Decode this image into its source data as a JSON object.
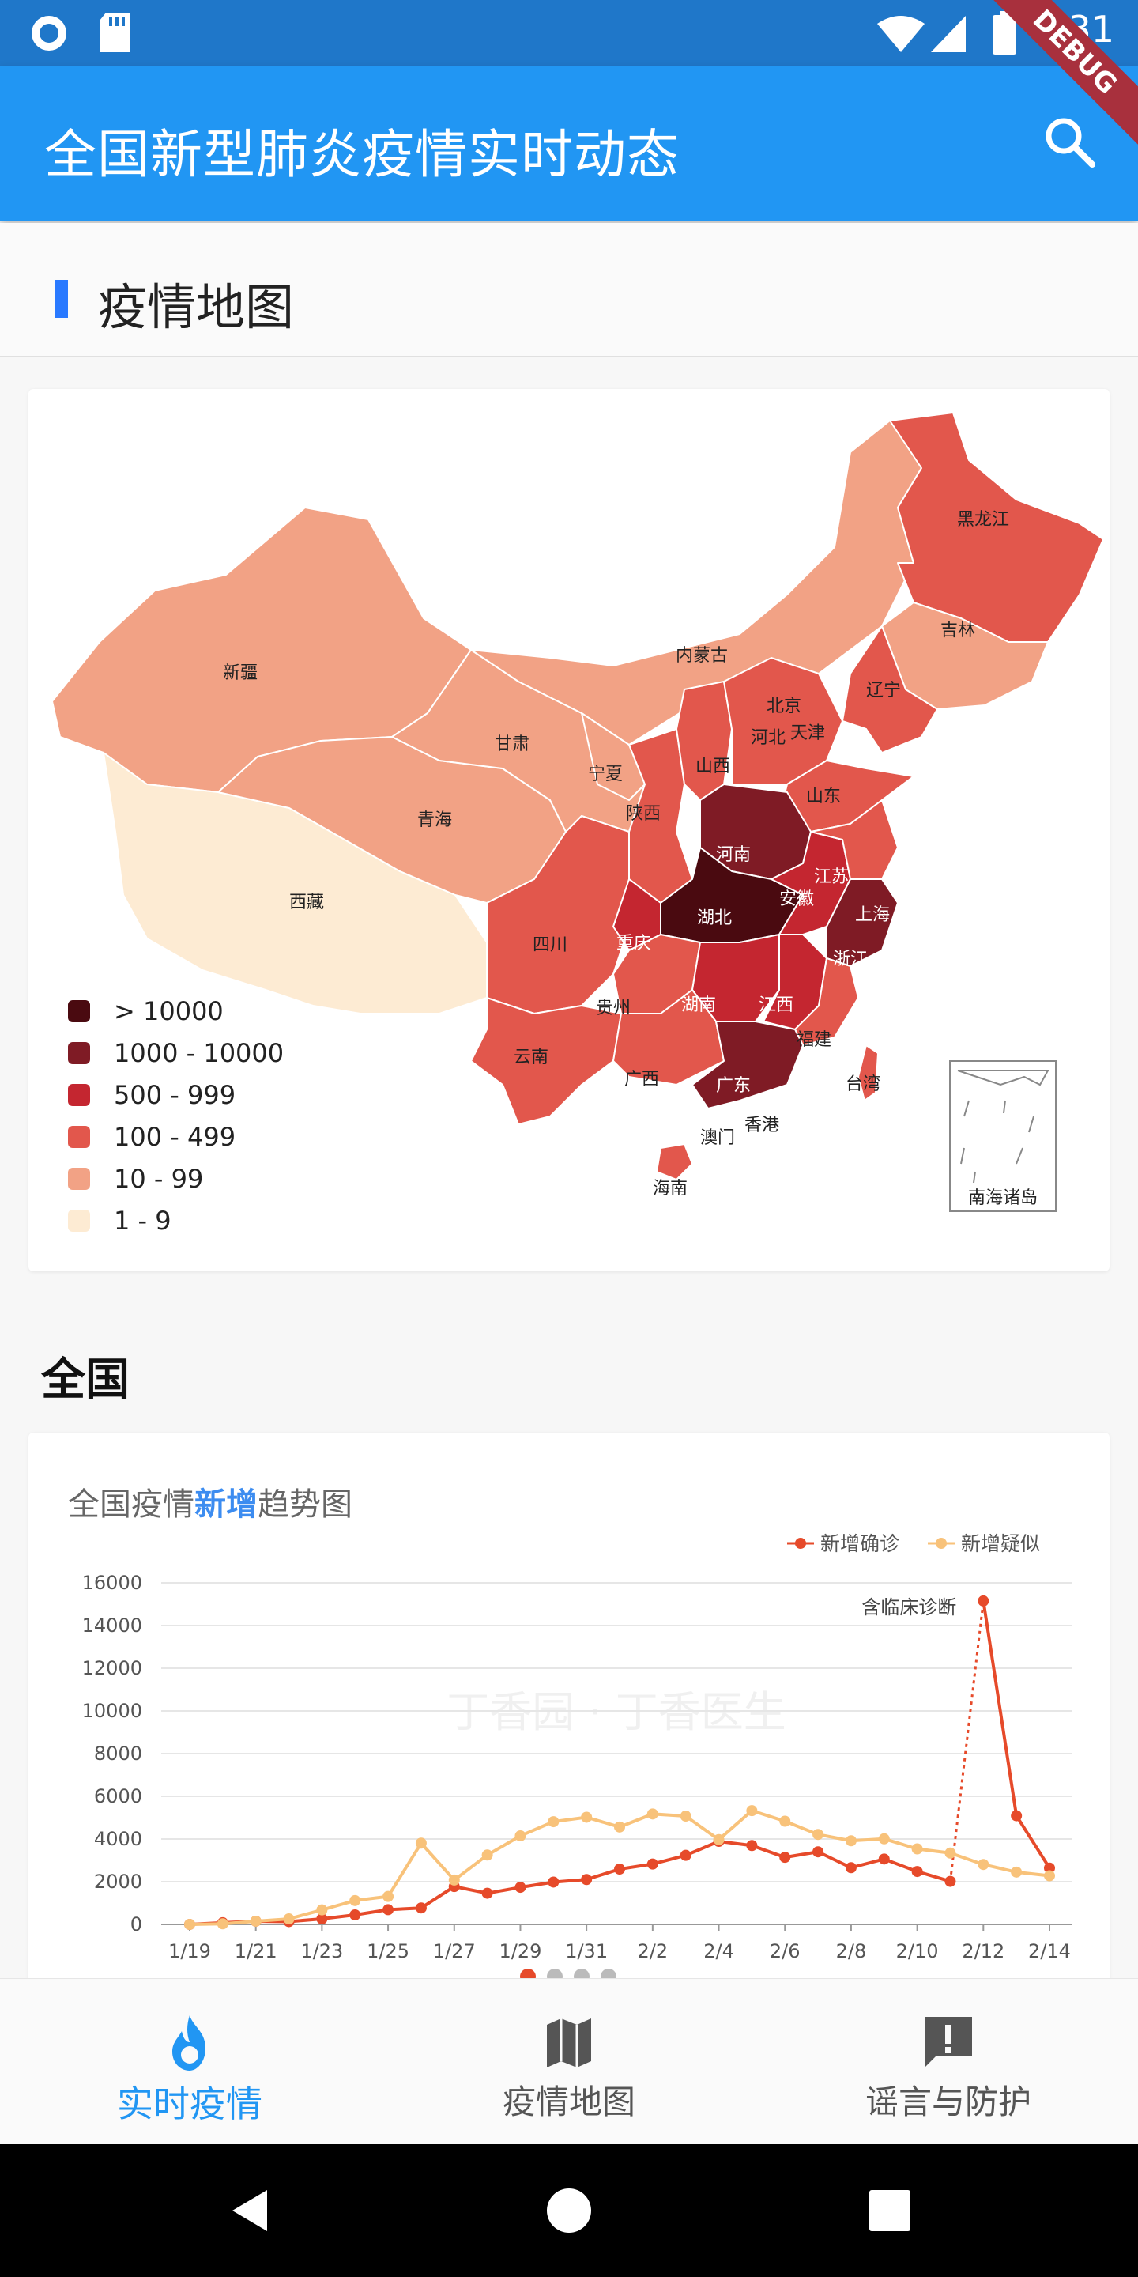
{
  "status_bar": {
    "time": "1:31",
    "debug_label": "DEBUG"
  },
  "app_bar": {
    "title": "全国新型肺炎疫情实时动态"
  },
  "map_section": {
    "title": "疫情地图",
    "legend": [
      {
        "label": "> 10000",
        "color": "#4a0a10"
      },
      {
        "label": "1000 - 10000",
        "color": "#7f1b25"
      },
      {
        "label": "500 - 999",
        "color": "#c42630"
      },
      {
        "label": "100 - 499",
        "color": "#e2574c"
      },
      {
        "label": "10 - 99",
        "color": "#f2a285"
      },
      {
        "label": "1 - 9",
        "color": "#fdebd3"
      }
    ],
    "provinces": {
      "heilongjiang": "黑龙江",
      "jilin": "吉林",
      "liaoning": "辽宁",
      "neimenggu": "内蒙古",
      "xinjiang": "新疆",
      "gansu": "甘肃",
      "ningxia": "宁夏",
      "qinghai": "青海",
      "xizang": "西藏",
      "beijing": "北京",
      "tianjin": "天津",
      "hebei": "河北",
      "shanxi": "山西",
      "shandong": "山东",
      "shaanxi": "陕西",
      "henan": "河南",
      "jiangsu": "江苏",
      "anhui": "安徽",
      "shanghai": "上海",
      "hubei": "湖北",
      "sichuan": "四川",
      "chongqing": "重庆",
      "zhejiang": "浙江",
      "guizhou": "贵州",
      "hunan": "湖南",
      "jiangxi": "江西",
      "yunnan": "云南",
      "fujian": "福建",
      "guangxi": "广西",
      "guangdong": "广东",
      "taiwan": "台湾",
      "xianggang": "香港",
      "aomen": "澳门",
      "hainan": "海南",
      "nanhai": "南海诸岛"
    }
  },
  "national_section": {
    "title": "全国"
  },
  "chart_title": {
    "prefix": "全国疫情",
    "highlight": "新增",
    "suffix": "趋势图"
  },
  "chart_data": {
    "type": "line",
    "legend_position": "top-right",
    "ylim": [
      0,
      16000
    ],
    "y_ticks": [
      0,
      2000,
      4000,
      6000,
      8000,
      10000,
      12000,
      14000,
      16000
    ],
    "x_tick_labels": [
      "1/19",
      "1/21",
      "1/23",
      "1/25",
      "1/27",
      "1/29",
      "1/31",
      "2/2",
      "2/4",
      "2/6",
      "2/8",
      "2/10",
      "2/12",
      "2/14"
    ],
    "x": [
      "1/19",
      "1/20",
      "1/21",
      "1/22",
      "1/23",
      "1/24",
      "1/25",
      "1/26",
      "1/27",
      "1/28",
      "1/29",
      "1/30",
      "1/31",
      "2/1",
      "2/2",
      "2/3",
      "2/4",
      "2/5",
      "2/6",
      "2/7",
      "2/8",
      "2/9",
      "2/10",
      "2/11",
      "2/12",
      "2/13",
      "2/14"
    ],
    "series": [
      {
        "name": "新增确诊",
        "color": "#e64a2a",
        "values": [
          0,
          77,
          149,
          131,
          259,
          444,
          688,
          769,
          1771,
          1459,
          1737,
          1982,
          2102,
          2590,
          2829,
          3235,
          3887,
          3694,
          3143,
          3399,
          2656,
          3062,
          2478,
          2015,
          15152,
          5090,
          2641
        ]
      },
      {
        "name": "新增疑似",
        "color": "#f8c27a",
        "values": [
          0,
          27,
          150,
          257,
          680,
          1118,
          1309,
          3806,
          2077,
          3248,
          4148,
          4812,
          5019,
          4562,
          5173,
          5072,
          3971,
          5328,
          4833,
          4214,
          3916,
          4008,
          3536,
          3342,
          2807,
          2450,
          2277
        ]
      }
    ],
    "annotation": "含临床诊断",
    "watermark": "丁香园 · 丁香医生"
  },
  "carousel": {
    "count": 4,
    "active": 0
  },
  "bottom_nav": [
    {
      "label": "实时疫情",
      "icon": "fire-icon",
      "active": true
    },
    {
      "label": "疫情地图",
      "icon": "map-icon",
      "active": false
    },
    {
      "label": "谣言与防护",
      "icon": "alert-message-icon",
      "active": false
    }
  ]
}
